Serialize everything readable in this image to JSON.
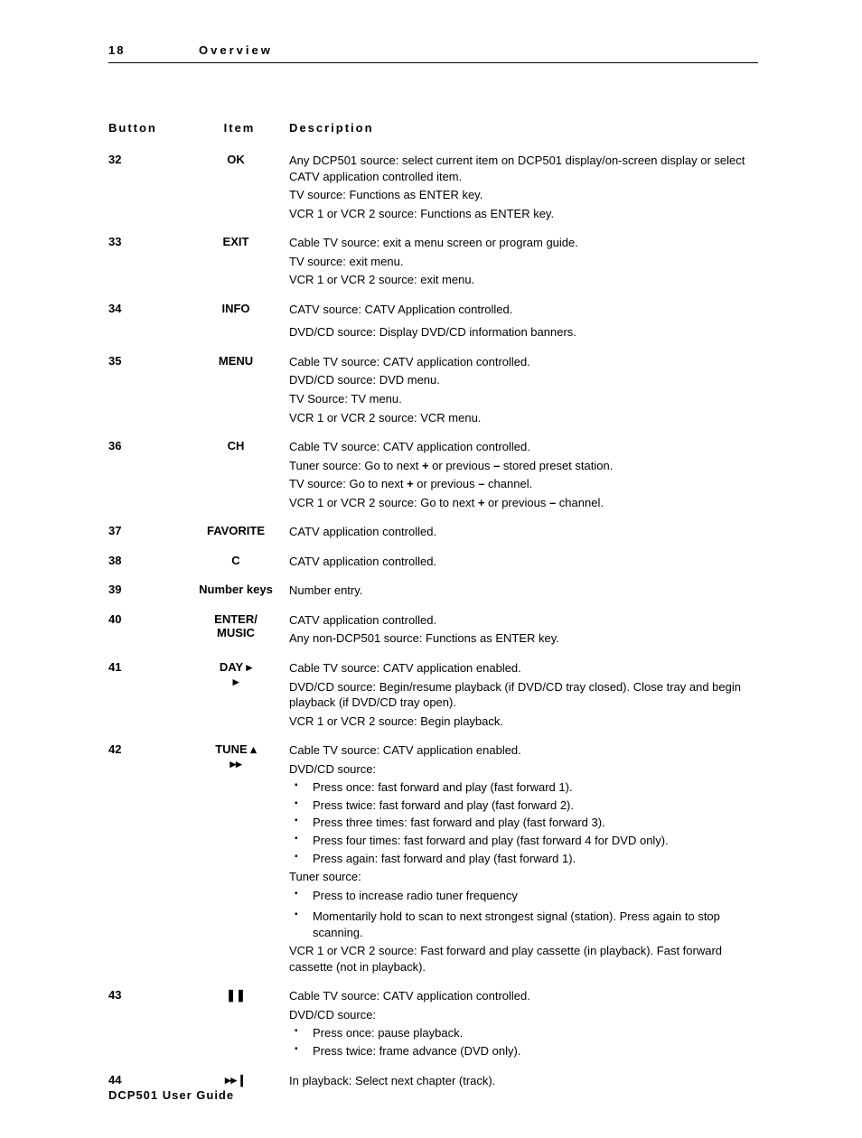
{
  "header": {
    "page_number": "18",
    "section": "Overview"
  },
  "columns": {
    "button": "Button",
    "item": "Item",
    "description": "Description"
  },
  "rows": [
    {
      "button": "32",
      "item": "OK",
      "desc_html": "<p>Any DCP501 source: select current item on DCP501 display/on-screen display or select CATV application controlled item.</p><p>TV source: Functions as E<span class='smallcaps'>NTER</span> key.</p><p>VCR 1 or VCR 2 source: Functions as E<span class='smallcaps'>NTER</span> key.</p>"
    },
    {
      "button": "33",
      "item": "EXIT",
      "desc_html": "<p>Cable TV source: exit a menu screen or program guide.</p><p>TV source: exit menu.</p><p>VCR 1 or VCR 2 source: exit menu.</p>"
    },
    {
      "button": "34",
      "item": "INFO",
      "desc_html": "<p>CATV source: CATV Application controlled.</p><p style='margin-top:8px'>DVD/CD source: Display DVD/CD information banners.</p>"
    },
    {
      "button": "35",
      "item": "MENU",
      "desc_html": "<p>Cable TV source: CATV application controlled.</p><p>DVD/CD source: DVD menu.</p><p>TV Source: TV menu.</p><p>VCR 1 or VCR 2 source: VCR menu.</p>"
    },
    {
      "button": "36",
      "item": "CH",
      "desc_html": "<p>Cable TV source: CATV application controlled.</p><p>Tuner source: Go to next <b>+</b> or previous <b>–</b> stored preset station.</p><p>TV source: Go to next <b>+</b> or previous <b>–</b> channel.</p><p>VCR 1 or VCR 2 source: Go to next <b>+</b> or previous <b>–</b> channel.</p>"
    },
    {
      "button": "37",
      "item": "FAVORITE",
      "desc_html": "<p>CATV application controlled.</p>"
    },
    {
      "button": "38",
      "item": "C",
      "desc_html": "<p>CATV application controlled.</p>"
    },
    {
      "button": "39",
      "item": "Number keys",
      "desc_html": "<p>Number entry.</p>"
    },
    {
      "button": "40",
      "item": "ENTER/<span class='sub'>MUSIC</span>",
      "desc_html": "<p>CATV application controlled.</p><p>Any non-DCP501 source: Functions as E<span class='smallcaps'>NTER</span> key.</p>"
    },
    {
      "button": "41",
      "item": "DAY  ▸<span class='sub'>▸</span>",
      "desc_html": "<p>Cable TV source: CATV application enabled.</p><p>DVD/CD source: Begin/resume playback (if DVD/CD tray closed). Close tray and begin playback (if DVD/CD tray open).</p><p>VCR 1 or VCR 2 source: Begin playback.</p>"
    },
    {
      "button": "42",
      "item": "TUNE  ▴<span class='sub icon'>▸▸</span>",
      "desc_html": "<p>Cable TV source: CATV application enabled.</p><p>DVD/CD source:</p><ul class='bullets'><li>Press once: fast forward and play (fast forward 1).</li><li>Press twice: fast forward and play (fast forward 2).</li><li>Press three times: fast forward and play (fast forward 3).</li><li>Press four times: fast forward and play (fast forward 4 for DVD only).</li><li>Press again: fast forward and play (fast forward 1).</li></ul><p>Tuner source:</p><ul class='bullets'><li>Press to increase radio tuner frequency</li><li style='margin-top:6px'>Momentarily hold to scan to next strongest signal (station). Press again to stop scanning.</li></ul><p>VCR 1 or VCR 2 source: Fast forward and play cassette (in playback). Fast forward cassette (not in playback).</p>"
    },
    {
      "button": "43",
      "item": "❚❚",
      "desc_html": "<p>Cable TV source: CATV application controlled.</p><p>DVD/CD source:</p><ul class='bullets'><li>Press once: pause playback.</li><li>Press twice: frame advance (DVD only).</li></ul>"
    },
    {
      "button": "44",
      "item": "▸▸❙",
      "desc_html": "<p>In playback: Select next chapter (track).</p>"
    }
  ],
  "footer": "DCP501 User Guide"
}
